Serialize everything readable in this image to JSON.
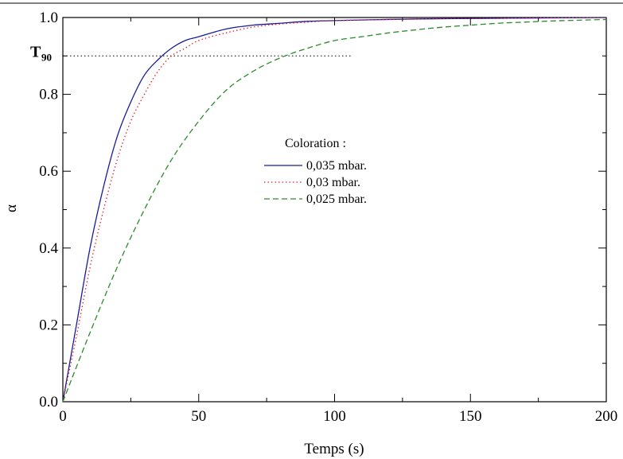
{
  "chart_data": {
    "type": "line",
    "title": "",
    "xlabel": "Temps (s)",
    "ylabel": "α",
    "xlim": [
      0,
      200
    ],
    "ylim": [
      0,
      1.0
    ],
    "xticks": [
      0,
      50,
      100,
      150,
      200
    ],
    "xtick_labels": [
      "0",
      "50",
      "100",
      "150",
      "200"
    ],
    "yticks": [
      0,
      0.2,
      0.4,
      0.6,
      0.8,
      1.0
    ],
    "ytick_labels": [
      "0.0",
      "0.2",
      "0.4",
      "0.6",
      "0.8",
      "1.0"
    ],
    "grid": false,
    "legend": {
      "title": "Coloration :",
      "placement": "center-right"
    },
    "annotation": {
      "label": "T",
      "subscript": "90",
      "y": 0.9,
      "x_end": 106
    },
    "series": [
      {
        "name": "0,035 mbar.",
        "color": "#1a1a9c",
        "style": "solid",
        "x": [
          0,
          5,
          10,
          15,
          20,
          25,
          30,
          35,
          40,
          45,
          50,
          60,
          70,
          80,
          90,
          100,
          120,
          140,
          160,
          180,
          200
        ],
        "y": [
          0,
          0.2,
          0.4,
          0.56,
          0.69,
          0.78,
          0.85,
          0.89,
          0.92,
          0.94,
          0.95,
          0.97,
          0.98,
          0.985,
          0.99,
          0.992,
          0.995,
          0.997,
          0.998,
          0.999,
          1.0
        ]
      },
      {
        "name": "0,03 mbar.",
        "color": "#e0242b",
        "style": "dotted",
        "x": [
          0,
          5,
          10,
          15,
          20,
          25,
          30,
          35,
          40,
          45,
          50,
          60,
          70,
          80,
          90,
          100,
          120,
          140,
          160,
          180,
          200
        ],
        "y": [
          0,
          0.17,
          0.35,
          0.5,
          0.63,
          0.73,
          0.8,
          0.86,
          0.9,
          0.92,
          0.94,
          0.96,
          0.975,
          0.983,
          0.988,
          0.992,
          0.995,
          0.997,
          0.998,
          0.999,
          1.0
        ]
      },
      {
        "name": "0,025 mbar.",
        "color": "#2a8a2a",
        "style": "dashed",
        "x": [
          0,
          10,
          20,
          30,
          40,
          50,
          60,
          70,
          80,
          90,
          100,
          110,
          120,
          130,
          140,
          150,
          160,
          170,
          180,
          190,
          200
        ],
        "y": [
          0,
          0.18,
          0.35,
          0.5,
          0.63,
          0.73,
          0.81,
          0.86,
          0.895,
          0.92,
          0.94,
          0.95,
          0.96,
          0.968,
          0.975,
          0.98,
          0.985,
          0.988,
          0.991,
          0.993,
          0.995
        ]
      }
    ]
  }
}
